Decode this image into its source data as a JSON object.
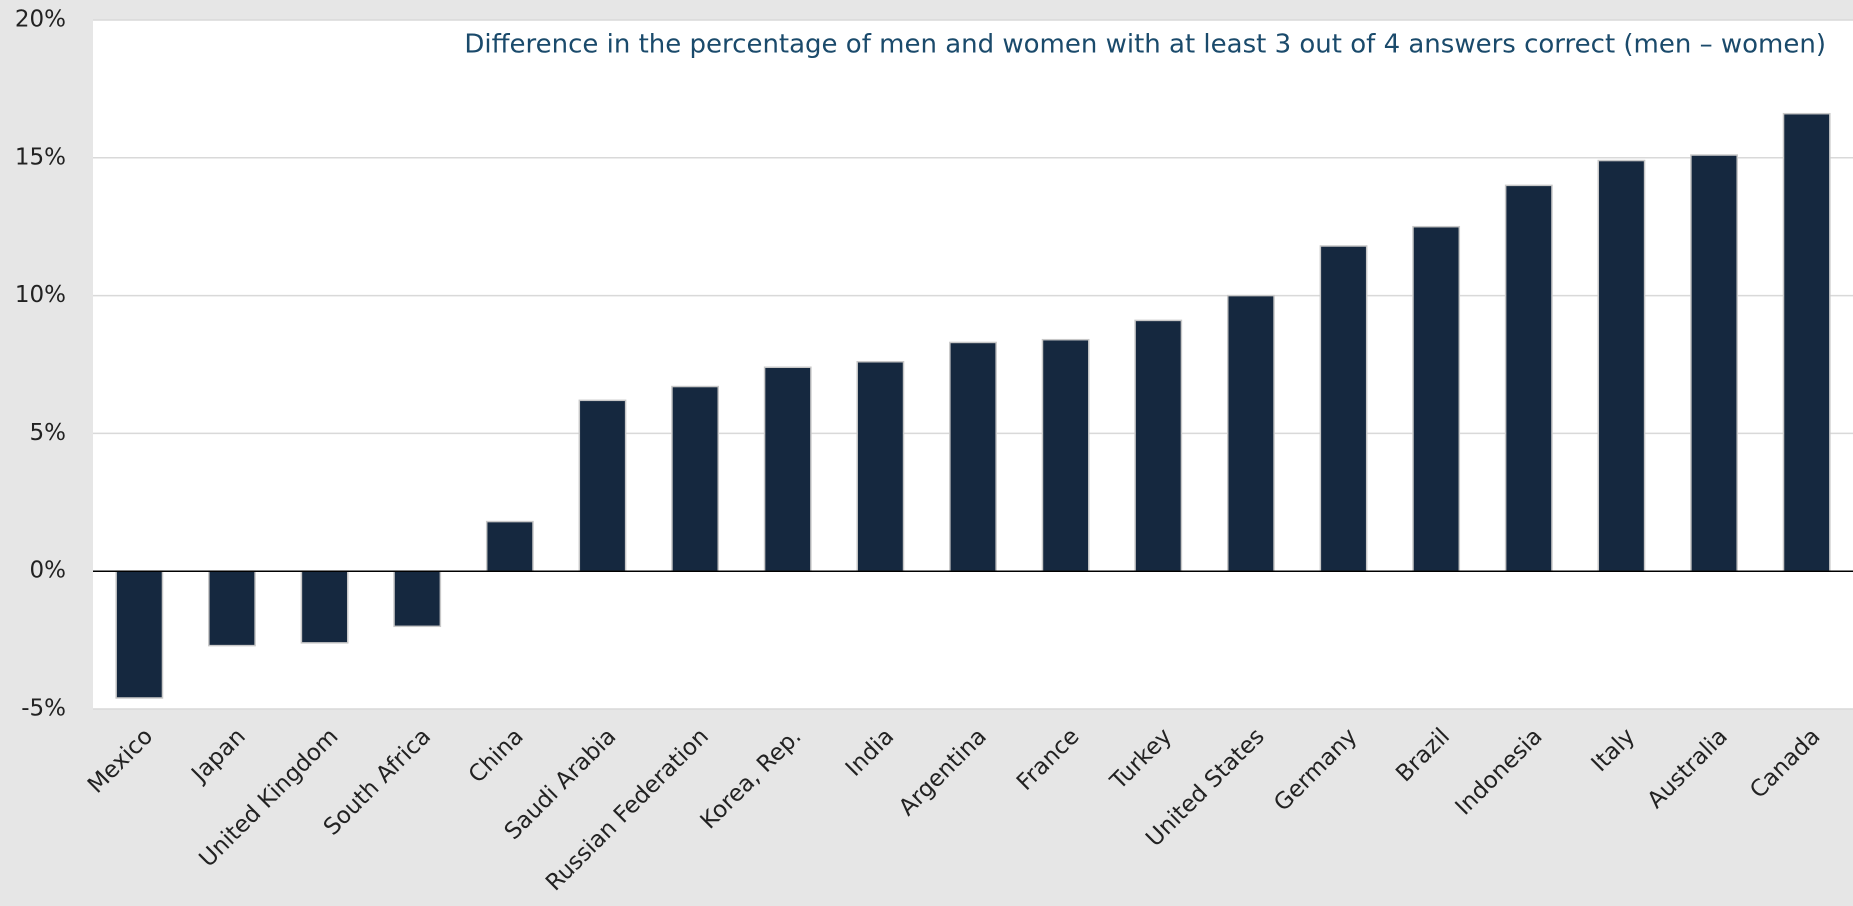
{
  "chart_data": {
    "type": "bar",
    "title": "Difference in the percentage of men and women with at least 3 out of 4 answers correct (men – women)",
    "categories": [
      "Mexico",
      "Japan",
      "United Kingdom",
      "South Africa",
      "China",
      "Saudi Arabia",
      "Russian Federation",
      "Korea, Rep.",
      "India",
      "Argentina",
      "France",
      "Turkey",
      "United States",
      "Germany",
      "Brazil",
      "Indonesia",
      "Italy",
      "Australia",
      "Canada"
    ],
    "values": [
      -4.6,
      -2.7,
      -2.6,
      -2.0,
      1.8,
      6.2,
      6.7,
      7.4,
      7.6,
      8.3,
      8.4,
      9.1,
      10.0,
      11.8,
      12.5,
      14.0,
      14.9,
      15.1,
      16.6
    ],
    "color": "#15283f",
    "ylim": [
      -5,
      20
    ],
    "yticks": [
      {
        "value": -5,
        "label": "-5%"
      },
      {
        "value": 0,
        "label": "0%"
      },
      {
        "value": 5,
        "label": "5%"
      },
      {
        "value": 10,
        "label": "10%"
      },
      {
        "value": 15,
        "label": "15%"
      },
      {
        "value": 20,
        "label": "20%"
      }
    ],
    "grid": true
  }
}
